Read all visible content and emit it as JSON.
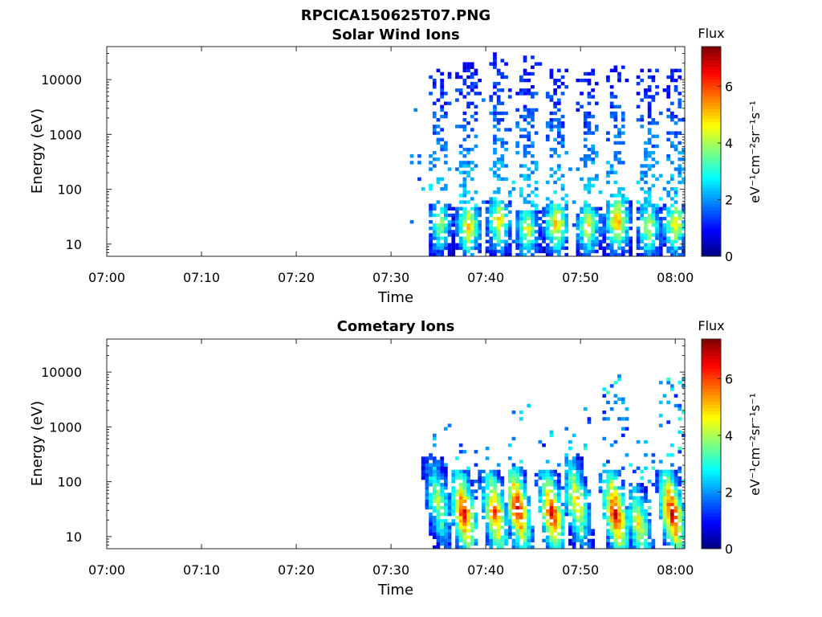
{
  "figure": {
    "title": "RPCICA150625T07.PNG"
  },
  "chart_data": [
    {
      "type": "heatmap",
      "title": "Solar Wind Ions",
      "xlabel": "Time",
      "ylabel": "Energy (eV)",
      "x_ticks": [
        "07:00",
        "07:10",
        "07:20",
        "07:30",
        "07:40",
        "07:50",
        "08:00"
      ],
      "y_ticks": [
        "10",
        "100",
        "1000",
        "10000"
      ],
      "y_scale": "log",
      "xlim": [
        "07:00",
        "08:01"
      ],
      "ylim": [
        6,
        40000
      ],
      "colorbar": {
        "label": "Flux",
        "units": "eV⁻¹cm⁻²sr⁻¹s⁻¹",
        "ticks": [
          "0",
          "2",
          "4",
          "6"
        ],
        "range": [
          0,
          7.4
        ],
        "colormap": "jet"
      },
      "data_start": "07:32",
      "bursts": [
        {
          "time_min": 35.0,
          "peak_energy_eV": 22,
          "peak_flux": 4.2,
          "max_energy_eV": 15000
        },
        {
          "time_min": 38.0,
          "peak_energy_eV": 20,
          "peak_flux": 5.5,
          "max_energy_eV": 20000
        },
        {
          "time_min": 41.2,
          "peak_energy_eV": 25,
          "peak_flux": 5.2,
          "max_energy_eV": 28000
        },
        {
          "time_min": 44.2,
          "peak_energy_eV": 18,
          "peak_flux": 4.8,
          "max_energy_eV": 25000
        },
        {
          "time_min": 47.3,
          "peak_energy_eV": 22,
          "peak_flux": 5.6,
          "max_energy_eV": 15000
        },
        {
          "time_min": 50.6,
          "peak_energy_eV": 20,
          "peak_flux": 5.0,
          "max_energy_eV": 18000
        },
        {
          "time_min": 53.7,
          "peak_energy_eV": 25,
          "peak_flux": 6.0,
          "max_energy_eV": 18000
        },
        {
          "time_min": 57.0,
          "peak_energy_eV": 20,
          "peak_flux": 4.8,
          "max_energy_eV": 15000
        },
        {
          "time_min": 59.8,
          "peak_energy_eV": 22,
          "peak_flux": 5.2,
          "max_energy_eV": 15000
        }
      ]
    },
    {
      "type": "heatmap",
      "title": "Cometary Ions",
      "xlabel": "Time",
      "ylabel": "Energy (eV)",
      "x_ticks": [
        "07:00",
        "07:10",
        "07:20",
        "07:30",
        "07:40",
        "07:50",
        "08:00"
      ],
      "y_ticks": [
        "10",
        "100",
        "1000",
        "10000"
      ],
      "y_scale": "log",
      "xlim": [
        "07:00",
        "08:01"
      ],
      "ylim": [
        6,
        40000
      ],
      "colorbar": {
        "label": "Flux",
        "units": "eV⁻¹cm⁻²sr⁻¹s⁻¹",
        "ticks": [
          "0",
          "2",
          "4",
          "6"
        ],
        "range": [
          0,
          7.4
        ],
        "colormap": "jet"
      },
      "data_start": "07:32",
      "bursts": [
        {
          "time_min": 34.8,
          "peak_energy_eV": 40,
          "peak_flux": 4.5,
          "max_energy_eV": 1000
        },
        {
          "time_min": 37.5,
          "peak_energy_eV": 25,
          "peak_flux": 7.0,
          "max_energy_eV": 600
        },
        {
          "time_min": 40.8,
          "peak_energy_eV": 25,
          "peak_flux": 6.5,
          "max_energy_eV": 400
        },
        {
          "time_min": 43.2,
          "peak_energy_eV": 30,
          "peak_flux": 7.2,
          "max_energy_eV": 2500
        },
        {
          "time_min": 46.8,
          "peak_energy_eV": 25,
          "peak_flux": 7.0,
          "max_energy_eV": 800
        },
        {
          "time_min": 49.4,
          "peak_energy_eV": 40,
          "peak_flux": 5.5,
          "max_energy_eV": 2000
        },
        {
          "time_min": 53.5,
          "peak_energy_eV": 25,
          "peak_flux": 7.2,
          "max_energy_eV": 8000
        },
        {
          "time_min": 56.0,
          "peak_energy_eV": 15,
          "peak_flux": 5.0,
          "max_energy_eV": 500
        },
        {
          "time_min": 59.5,
          "peak_energy_eV": 25,
          "peak_flux": 7.3,
          "max_energy_eV": 9000
        }
      ]
    }
  ]
}
